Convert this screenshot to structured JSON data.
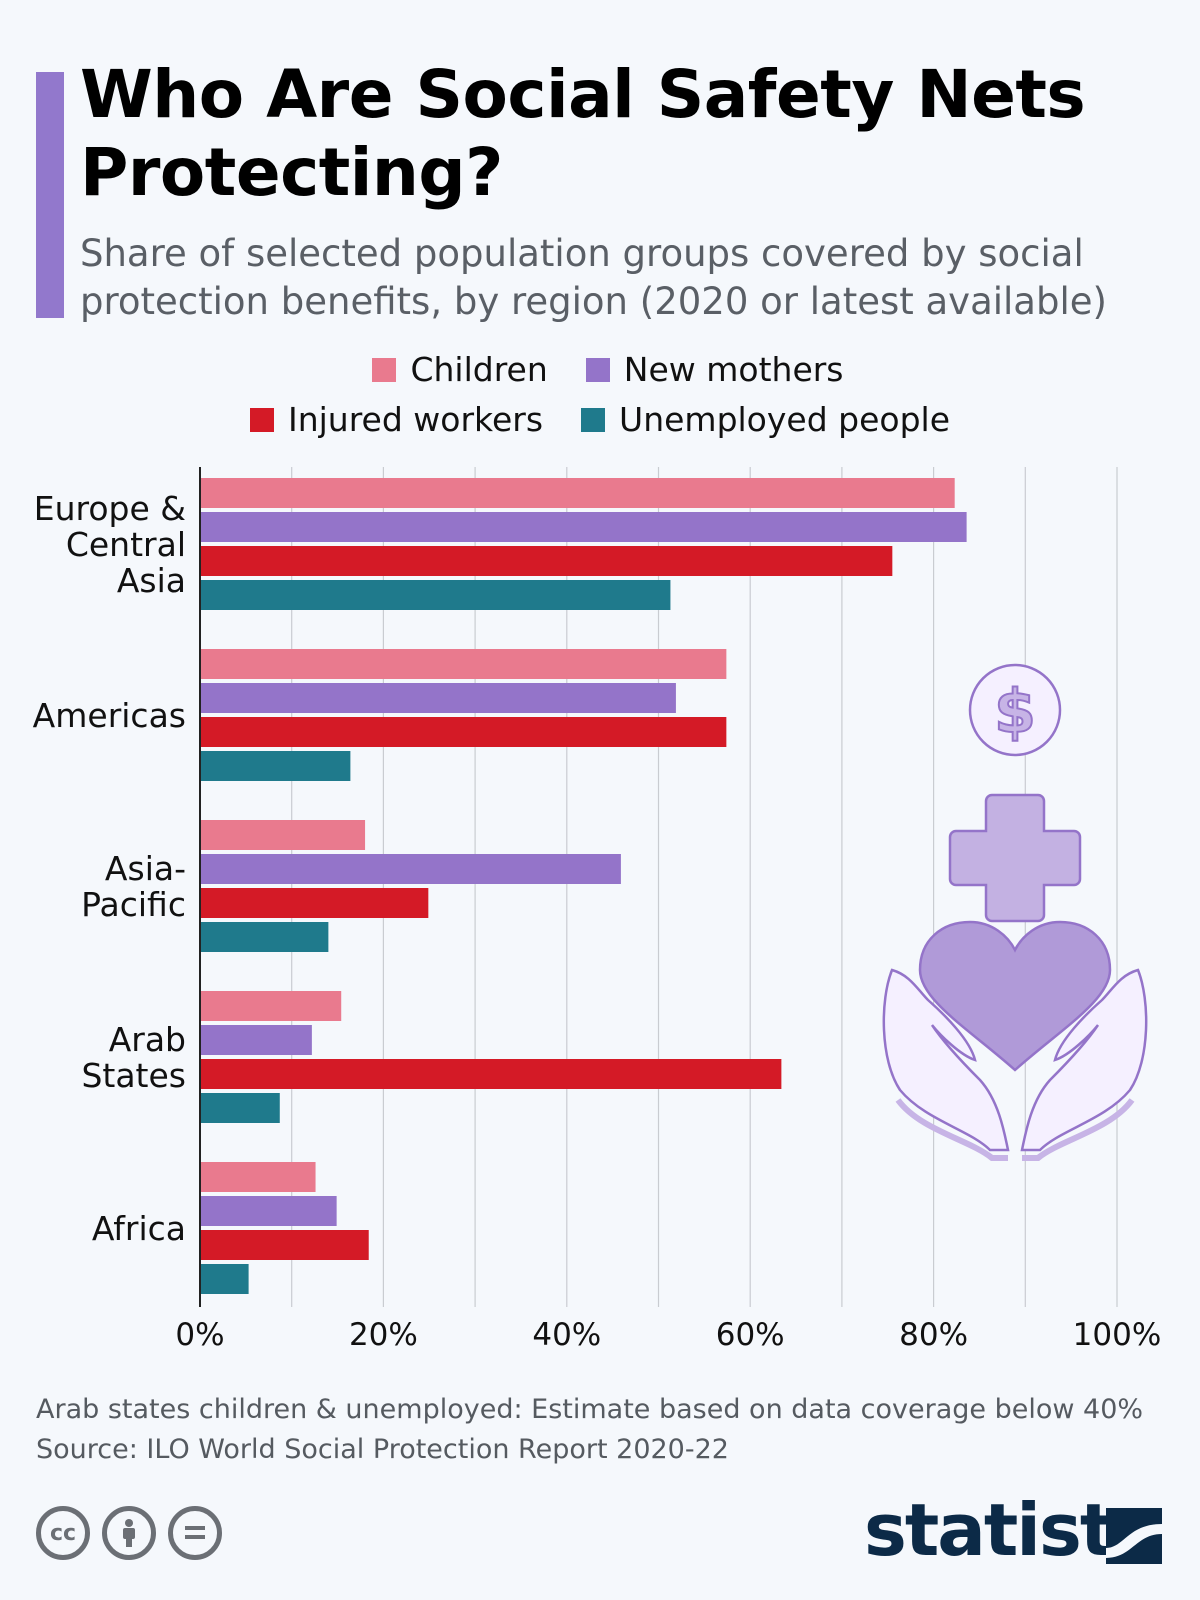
{
  "header": {
    "title": "Who Are Social Safety Nets Protecting?",
    "subtitle": "Share of selected population groups covered by social protection benefits, by region (2020 or latest available)"
  },
  "colors": {
    "accent": "#9278cc",
    "children": "#e97a8e",
    "new_mothers": "#9474c9",
    "injured_workers": "#d41a26",
    "unemployed": "#1f7a8c",
    "brand": "#0c2a47"
  },
  "chart_data": {
    "type": "bar",
    "orientation": "horizontal",
    "categories": [
      "Europe & Central Asia",
      "Americas",
      "Asia-Pacific",
      "Arab States",
      "Africa"
    ],
    "category_lines": [
      [
        "Europe &",
        "Central",
        "Asia"
      ],
      [
        "Americas"
      ],
      [
        "Asia-",
        "Pacific"
      ],
      [
        "Arab",
        "States"
      ],
      [
        "Africa"
      ]
    ],
    "series": [
      {
        "name": "Children",
        "color": "#e97a8e",
        "values": [
          82.3,
          57.4,
          18.0,
          15.4,
          12.6
        ]
      },
      {
        "name": "New mothers",
        "color": "#9474c9",
        "values": [
          83.6,
          51.9,
          45.9,
          12.2,
          14.9
        ]
      },
      {
        "name": "Injured workers",
        "color": "#d41a26",
        "values": [
          75.5,
          57.4,
          24.9,
          63.4,
          18.4
        ]
      },
      {
        "name": "Unemployed people",
        "color": "#1f7a8c",
        "values": [
          51.3,
          16.4,
          14.0,
          8.7,
          5.3
        ]
      }
    ],
    "xlim": [
      0,
      100
    ],
    "x_ticks": [
      "0%",
      "20%",
      "40%",
      "60%",
      "80%",
      "100%"
    ],
    "grid": true,
    "legend_position": "top-center"
  },
  "footer": {
    "note": "Arab states children & unemployed: Estimate based on data coverage below 40%",
    "source": "Source: ILO World Social Protection Report 2020-22",
    "brand": "statista"
  },
  "icons": [
    "cc-icon",
    "attribution-icon",
    "no-derivatives-icon",
    "dollar-coin-icon",
    "medical-cross-icon",
    "heart-in-hands-icon",
    "statista-logo-icon"
  ]
}
